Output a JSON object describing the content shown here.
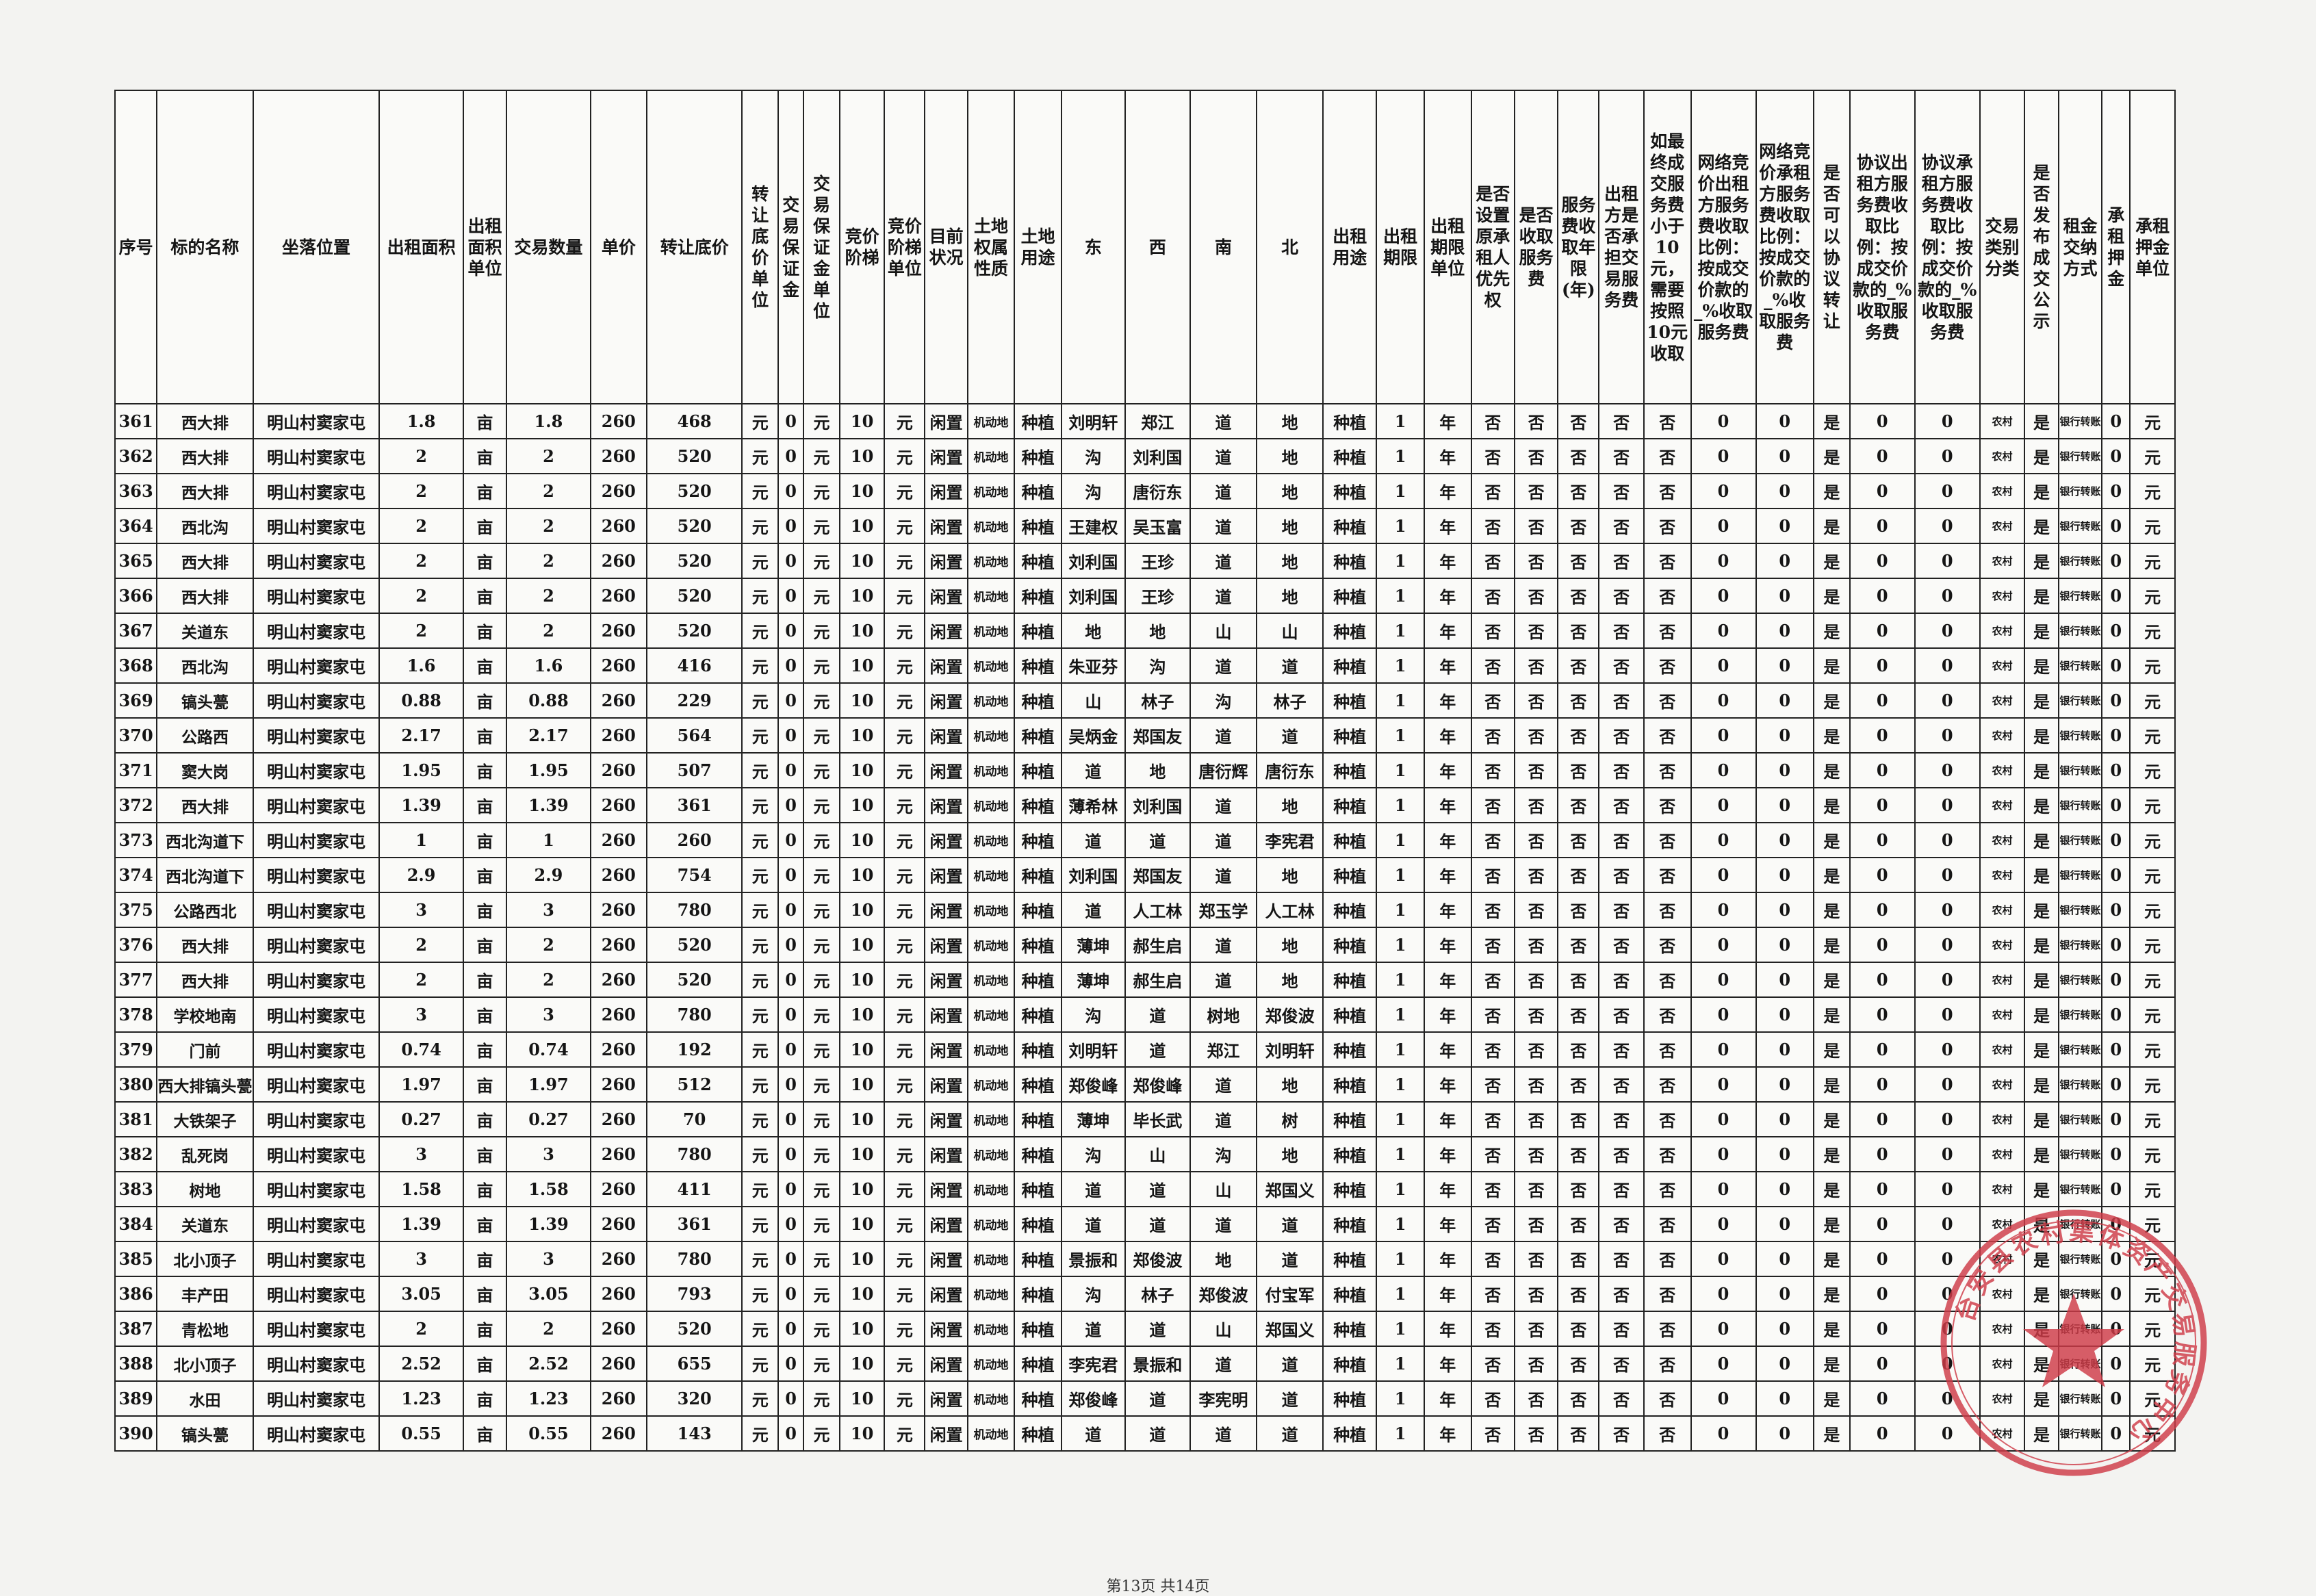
{
  "headers": [
    "序号",
    "标的名称",
    "坐落位置",
    "出租面积",
    "出租面积单位",
    "交易数量",
    "单价",
    "转让底价",
    "转让底价单位",
    "交易保证金",
    "交易保证金单位",
    "竞价阶梯",
    "竞价阶梯单位",
    "目前状况",
    "土地权属性质",
    "土地用途",
    "东",
    "西",
    "南",
    "北",
    "出租用途",
    "出租期限",
    "出租期限单位",
    "是否设置原承租人优先权",
    "是否收取服务费",
    "服务费收取年限(年)",
    "出租方是否承担交易服务费",
    "如最终成交服务费小于10元，需要按照10元收取",
    "网络竞价出租方服务费收取比例：按成交价款的_%收取服务费",
    "网络竞价承租方服务费收取比例：按成交价款的_%收取服务费",
    "是否可以协议转让",
    "协议出租方服务费收取比例：按成交价款的_%收取服务费",
    "协议承租方服务费收取比例：按成交价款的_%收取服务费",
    "交易类别分类",
    "是否发布成交公示",
    "租金交纳方式",
    "承租押金",
    "承租押金单位"
  ],
  "common": {
    "location": "明山村窦家屯",
    "area_unit": "亩",
    "price": "260",
    "yuan": "元",
    "zero": "0",
    "step": "10",
    "status": "闲置",
    "land_type": "机动地",
    "use": "种植",
    "years": "1",
    "year_unit": "年",
    "no": "否",
    "yes": "是",
    "category": "农村",
    "payment": "银行转账"
  },
  "rows": [
    {
      "no": "361",
      "name": "西大排",
      "area": "1.8",
      "qty": "1.8",
      "total": "468",
      "east": "刘明轩",
      "west": "郑江",
      "south": "道",
      "north": "地"
    },
    {
      "no": "362",
      "name": "西大排",
      "area": "2",
      "qty": "2",
      "total": "520",
      "east": "沟",
      "west": "刘利国",
      "south": "道",
      "north": "地"
    },
    {
      "no": "363",
      "name": "西大排",
      "area": "2",
      "qty": "2",
      "total": "520",
      "east": "沟",
      "west": "唐衍东",
      "south": "道",
      "north": "地"
    },
    {
      "no": "364",
      "name": "西北沟",
      "area": "2",
      "qty": "2",
      "total": "520",
      "east": "王建权",
      "west": "吴玉富",
      "south": "道",
      "north": "地"
    },
    {
      "no": "365",
      "name": "西大排",
      "area": "2",
      "qty": "2",
      "total": "520",
      "east": "刘利国",
      "west": "王珍",
      "south": "道",
      "north": "地"
    },
    {
      "no": "366",
      "name": "西大排",
      "area": "2",
      "qty": "2",
      "total": "520",
      "east": "刘利国",
      "west": "王珍",
      "south": "道",
      "north": "地"
    },
    {
      "no": "367",
      "name": "关道东",
      "area": "2",
      "qty": "2",
      "total": "520",
      "east": "地",
      "west": "地",
      "south": "山",
      "north": "山"
    },
    {
      "no": "368",
      "name": "西北沟",
      "area": "1.6",
      "qty": "1.6",
      "total": "416",
      "east": "朱亚芬",
      "west": "沟",
      "south": "道",
      "north": "道"
    },
    {
      "no": "369",
      "name": "镐头甍",
      "area": "0.88",
      "qty": "0.88",
      "total": "229",
      "east": "山",
      "west": "林子",
      "south": "沟",
      "north": "林子"
    },
    {
      "no": "370",
      "name": "公路西",
      "area": "2.17",
      "qty": "2.17",
      "total": "564",
      "east": "吴炳金",
      "west": "郑国友",
      "south": "道",
      "north": "道"
    },
    {
      "no": "371",
      "name": "窦大岗",
      "area": "1.95",
      "qty": "1.95",
      "total": "507",
      "east": "道",
      "west": "地",
      "south": "唐衍辉",
      "north": "唐衍东"
    },
    {
      "no": "372",
      "name": "西大排",
      "area": "1.39",
      "qty": "1.39",
      "total": "361",
      "east": "薄希林",
      "west": "刘利国",
      "south": "道",
      "north": "地"
    },
    {
      "no": "373",
      "name": "西北沟道下",
      "area": "1",
      "qty": "1",
      "total": "260",
      "east": "道",
      "west": "道",
      "south": "道",
      "north": "李宪君"
    },
    {
      "no": "374",
      "name": "西北沟道下",
      "area": "2.9",
      "qty": "2.9",
      "total": "754",
      "east": "刘利国",
      "west": "郑国友",
      "south": "道",
      "north": "地"
    },
    {
      "no": "375",
      "name": "公路西北",
      "area": "3",
      "qty": "3",
      "total": "780",
      "east": "道",
      "west": "人工林",
      "south": "郑玉学",
      "north": "人工林"
    },
    {
      "no": "376",
      "name": "西大排",
      "area": "2",
      "qty": "2",
      "total": "520",
      "east": "薄坤",
      "west": "郝生启",
      "south": "道",
      "north": "地"
    },
    {
      "no": "377",
      "name": "西大排",
      "area": "2",
      "qty": "2",
      "total": "520",
      "east": "薄坤",
      "west": "郝生启",
      "south": "道",
      "north": "地"
    },
    {
      "no": "378",
      "name": "学校地南",
      "area": "3",
      "qty": "3",
      "total": "780",
      "east": "沟",
      "west": "道",
      "south": "树地",
      "north": "郑俊波"
    },
    {
      "no": "379",
      "name": "门前",
      "area": "0.74",
      "qty": "0.74",
      "total": "192",
      "east": "刘明轩",
      "west": "道",
      "south": "郑江",
      "north": "刘明轩"
    },
    {
      "no": "380",
      "name": "西大排镐头甍",
      "area": "1.97",
      "qty": "1.97",
      "total": "512",
      "east": "郑俊峰",
      "west": "郑俊峰",
      "south": "道",
      "north": "地"
    },
    {
      "no": "381",
      "name": "大铁架子",
      "area": "0.27",
      "qty": "0.27",
      "total": "70",
      "east": "薄坤",
      "west": "毕长武",
      "south": "道",
      "north": "树"
    },
    {
      "no": "382",
      "name": "乱死岗",
      "area": "3",
      "qty": "3",
      "total": "780",
      "east": "沟",
      "west": "山",
      "south": "沟",
      "north": "地"
    },
    {
      "no": "383",
      "name": "树地",
      "area": "1.58",
      "qty": "1.58",
      "total": "411",
      "east": "道",
      "west": "道",
      "south": "山",
      "north": "郑国义"
    },
    {
      "no": "384",
      "name": "关道东",
      "area": "1.39",
      "qty": "1.39",
      "total": "361",
      "east": "道",
      "west": "道",
      "south": "道",
      "north": "道"
    },
    {
      "no": "385",
      "name": "北小顶子",
      "area": "3",
      "qty": "3",
      "total": "780",
      "east": "景振和",
      "west": "郑俊波",
      "south": "地",
      "north": "道"
    },
    {
      "no": "386",
      "name": "丰产田",
      "area": "3.05",
      "qty": "3.05",
      "total": "793",
      "east": "沟",
      "west": "林子",
      "south": "郑俊波",
      "north": "付宝军"
    },
    {
      "no": "387",
      "name": "青松地",
      "area": "2",
      "qty": "2",
      "total": "520",
      "east": "道",
      "west": "道",
      "south": "山",
      "north": "郑国义"
    },
    {
      "no": "388",
      "name": "北小顶子",
      "area": "2.52",
      "qty": "2.52",
      "total": "655",
      "east": "李宪君",
      "west": "景振和",
      "south": "道",
      "north": "道"
    },
    {
      "no": "389",
      "name": "水田",
      "area": "1.23",
      "qty": "1.23",
      "total": "320",
      "east": "郑俊峰",
      "west": "道",
      "south": "李宪明",
      "north": "道"
    },
    {
      "no": "390",
      "name": "镐头甍",
      "area": "0.55",
      "qty": "0.55",
      "total": "143",
      "east": "道",
      "west": "道",
      "south": "道",
      "north": "道"
    }
  ],
  "footer": "第13页 共14页",
  "stamp": {
    "text": "台安县农村集体资产交易服务中心",
    "color": "#cf3b48"
  }
}
